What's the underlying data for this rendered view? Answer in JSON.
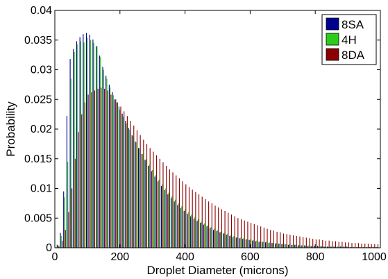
{
  "chart_data": {
    "type": "bar",
    "title": "",
    "xlabel": "Droplet Diameter (microns)",
    "ylabel": "Probability",
    "xlim": [
      0,
      1000
    ],
    "ylim": [
      0,
      0.04
    ],
    "xticks": [
      0,
      200,
      400,
      600,
      800,
      1000
    ],
    "yticks": [
      0,
      0.005,
      0.01,
      0.015,
      0.02,
      0.025,
      0.03,
      0.035,
      0.04
    ],
    "ytick_labels": [
      "0",
      "0.005",
      "0.01",
      "0.015",
      "0.02",
      "0.025",
      "0.03",
      "0.035",
      "0.04"
    ],
    "xtick_labels": [
      "0",
      "200",
      "400",
      "600",
      "800",
      "1000"
    ],
    "legend_position": "top-right",
    "grid": false,
    "x": [
      10,
      20,
      30,
      40,
      50,
      60,
      70,
      80,
      90,
      100,
      110,
      120,
      130,
      140,
      150,
      160,
      170,
      180,
      190,
      200,
      210,
      220,
      230,
      240,
      250,
      260,
      270,
      280,
      290,
      300,
      310,
      320,
      330,
      340,
      350,
      360,
      370,
      380,
      390,
      400,
      410,
      420,
      430,
      440,
      450,
      460,
      470,
      480,
      490,
      500,
      510,
      520,
      530,
      540,
      550,
      560,
      570,
      580,
      590,
      600,
      610,
      620,
      630,
      640,
      650,
      660,
      670,
      680,
      690,
      700,
      710,
      720,
      730,
      740,
      750,
      760,
      770,
      780,
      790,
      800,
      810,
      820,
      830,
      840,
      850,
      860,
      870,
      880,
      890,
      900,
      910,
      920,
      930,
      940,
      950,
      960,
      970,
      980,
      990
    ],
    "series": [
      {
        "name": "8SA",
        "color": "#00008f",
        "values": [
          0.0005,
          0.0025,
          0.0095,
          0.0222,
          0.0318,
          0.0335,
          0.0348,
          0.0355,
          0.036,
          0.0362,
          0.0359,
          0.0351,
          0.034,
          0.0324,
          0.0305,
          0.029,
          0.0275,
          0.0262,
          0.025,
          0.0238,
          0.0226,
          0.0214,
          0.0202,
          0.019,
          0.0179,
          0.0168,
          0.0158,
          0.0148,
          0.0138,
          0.0129,
          0.012,
          0.0112,
          0.0104,
          0.0097,
          0.009,
          0.0084,
          0.0078,
          0.0072,
          0.0067,
          0.0062,
          0.0057,
          0.0053,
          0.0049,
          0.0045,
          0.0042,
          0.0039,
          0.0036,
          0.0033,
          0.003,
          0.0028,
          0.0026,
          0.0024,
          0.0022,
          0.002,
          0.0018,
          0.0017,
          0.0016,
          0.0015,
          0.0014,
          0.0013,
          0.0012,
          0.0011,
          0.001,
          0.001,
          0.0009,
          0.0008,
          0.0008,
          0.0007,
          0.0007,
          0.0006,
          0.0006,
          0.0005,
          0.0005,
          0.0005,
          0.0004,
          0.0004,
          0.0004,
          0.0003,
          0.0003,
          0.0003,
          0.0003,
          0.0003,
          0.0002,
          0.0002,
          0.0002,
          0.0002,
          0.0002,
          0.0002,
          0.0002,
          0.0002,
          0.0001,
          0.0001,
          0.0001,
          0.0001,
          0.0001,
          0.0001,
          0.0001,
          0.0001,
          0.0001
        ]
      },
      {
        "name": "4H",
        "color": "#2ecc1a",
        "values": [
          0.0004,
          0.002,
          0.0085,
          0.0145,
          0.0285,
          0.033,
          0.0343,
          0.0348,
          0.0346,
          0.0354,
          0.035,
          0.0345,
          0.0339,
          0.0322,
          0.03,
          0.0285,
          0.027,
          0.0257,
          0.0245,
          0.0233,
          0.0221,
          0.021,
          0.0199,
          0.0188,
          0.0178,
          0.0168,
          0.0158,
          0.0149,
          0.014,
          0.0131,
          0.0123,
          0.0115,
          0.0107,
          0.01,
          0.0093,
          0.0087,
          0.0081,
          0.0075,
          0.007,
          0.0065,
          0.006,
          0.0056,
          0.0052,
          0.0048,
          0.0044,
          0.0041,
          0.0038,
          0.0035,
          0.0032,
          0.003,
          0.0027,
          0.0025,
          0.0023,
          0.0021,
          0.002,
          0.0018,
          0.0017,
          0.0016,
          0.0015,
          0.0014,
          0.0013,
          0.0012,
          0.0011,
          0.001,
          0.001,
          0.0009,
          0.0008,
          0.0008,
          0.0007,
          0.0007,
          0.0006,
          0.0006,
          0.0005,
          0.0005,
          0.0005,
          0.0004,
          0.0004,
          0.0004,
          0.0003,
          0.0003,
          0.0003,
          0.0003,
          0.0002,
          0.0002,
          0.0002,
          0.0002,
          0.0002,
          0.0002,
          0.0002,
          0.0001,
          0.0001,
          0.0001,
          0.0001,
          0.0001,
          0.0001,
          0.0001,
          0.0001,
          0.0001,
          0.0001
        ]
      },
      {
        "name": "8DA",
        "color": "#8b0000",
        "values": [
          0.0003,
          0.0012,
          0.003,
          0.006,
          0.01,
          0.015,
          0.0195,
          0.0225,
          0.0245,
          0.0258,
          0.0262,
          0.0265,
          0.0268,
          0.027,
          0.0268,
          0.0265,
          0.0258,
          0.025,
          0.0245,
          0.0238,
          0.023,
          0.0222,
          0.0214,
          0.0206,
          0.0198,
          0.019,
          0.0182,
          0.0175,
          0.0168,
          0.0162,
          0.0156,
          0.015,
          0.0144,
          0.0138,
          0.0132,
          0.0127,
          0.0122,
          0.0117,
          0.0112,
          0.0107,
          0.0102,
          0.0098,
          0.0094,
          0.009,
          0.0086,
          0.0082,
          0.0078,
          0.0075,
          0.0071,
          0.0068,
          0.0065,
          0.0062,
          0.0059,
          0.0056,
          0.0053,
          0.005,
          0.0048,
          0.0046,
          0.0044,
          0.0042,
          0.004,
          0.0038,
          0.0036,
          0.0034,
          0.0032,
          0.003,
          0.0029,
          0.0027,
          0.0026,
          0.0024,
          0.0023,
          0.0022,
          0.0021,
          0.002,
          0.0019,
          0.0018,
          0.0017,
          0.0016,
          0.0015,
          0.0014,
          0.0014,
          0.0013,
          0.0012,
          0.0012,
          0.0011,
          0.0011,
          0.001,
          0.001,
          0.0009,
          0.0009,
          0.0008,
          0.0008,
          0.0008,
          0.0007,
          0.0007,
          0.0007,
          0.0006,
          0.0006,
          0.0006
        ]
      }
    ]
  }
}
